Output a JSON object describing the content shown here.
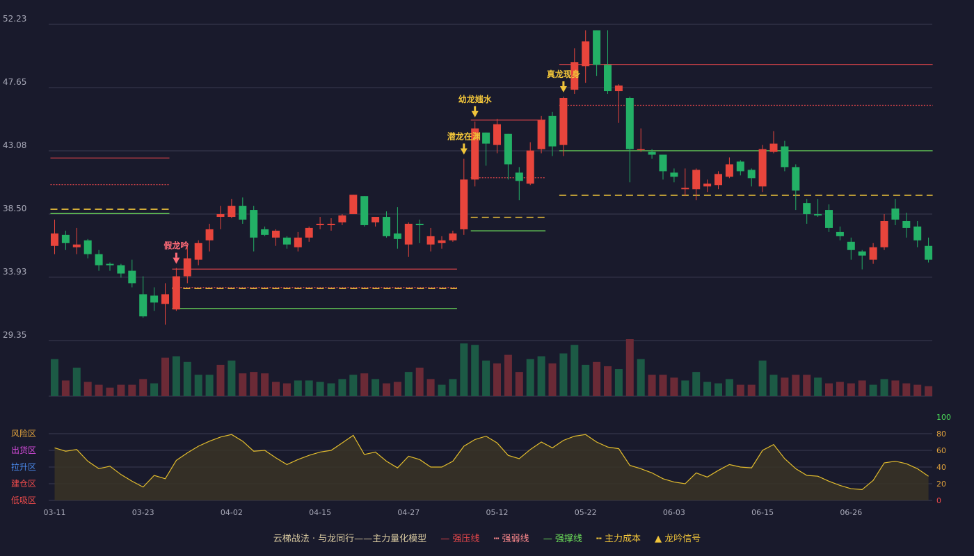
{
  "chart_data": {
    "type": "candlestick",
    "price_axis": {
      "ticks": [
        "52.23",
        "47.65",
        "43.08",
        "38.50",
        "33.93",
        "29.35"
      ],
      "ylim": [
        29.35,
        52.23
      ]
    },
    "x_ticks": [
      {
        "index": 0,
        "label": "03-11"
      },
      {
        "index": 8,
        "label": "03-23"
      },
      {
        "index": 16,
        "label": "04-02"
      },
      {
        "index": 24,
        "label": "04-15"
      },
      {
        "index": 32,
        "label": "04-27"
      },
      {
        "index": 40,
        "label": "05-12"
      },
      {
        "index": 48,
        "label": "05-22"
      },
      {
        "index": 56,
        "label": "06-03"
      },
      {
        "index": 64,
        "label": "06-15"
      },
      {
        "index": 72,
        "label": "06-26"
      }
    ],
    "candles": [
      [
        36.2,
        37.1,
        35.6,
        38.1
      ],
      [
        37.0,
        36.4,
        35.9,
        37.3
      ],
      [
        36.1,
        36.3,
        35.6,
        37.5
      ],
      [
        36.6,
        35.6,
        35.3,
        36.7
      ],
      [
        35.6,
        34.8,
        34.4,
        35.9
      ],
      [
        34.9,
        34.8,
        34.4,
        35.0
      ],
      [
        34.8,
        34.2,
        33.9,
        34.9
      ],
      [
        34.4,
        33.5,
        33.2,
        35.2
      ],
      [
        32.7,
        31.1,
        31.0,
        34.0
      ],
      [
        32.6,
        32.1,
        31.5,
        33.2
      ],
      [
        32.0,
        32.7,
        30.5,
        33.5
      ],
      [
        31.6,
        34.0,
        31.5,
        34.6
      ],
      [
        34.0,
        35.3,
        33.5,
        36.3
      ],
      [
        35.2,
        36.4,
        34.8,
        36.6
      ],
      [
        36.6,
        37.4,
        35.8,
        37.8
      ],
      [
        38.3,
        38.5,
        37.4,
        39.1
      ],
      [
        38.3,
        39.1,
        38.2,
        39.6
      ],
      [
        39.1,
        38.1,
        37.8,
        39.7
      ],
      [
        38.8,
        36.8,
        35.8,
        39.1
      ],
      [
        37.4,
        37.0,
        36.9,
        37.6
      ],
      [
        36.8,
        37.3,
        36.2,
        37.4
      ],
      [
        36.8,
        36.3,
        36.0,
        36.9
      ],
      [
        36.1,
        36.8,
        35.8,
        37.2
      ],
      [
        36.8,
        37.5,
        36.5,
        37.6
      ],
      [
        37.7,
        37.8,
        37.4,
        38.3
      ],
      [
        37.7,
        37.8,
        37.3,
        38.2
      ],
      [
        37.9,
        38.4,
        37.7,
        38.5
      ],
      [
        38.5,
        39.9,
        38.5,
        39.9
      ],
      [
        39.8,
        37.7,
        37.6,
        39.8
      ],
      [
        37.9,
        38.3,
        37.6,
        38.3
      ],
      [
        38.3,
        36.9,
        36.8,
        38.7
      ],
      [
        37.1,
        36.7,
        36.0,
        39.0
      ],
      [
        36.3,
        37.8,
        35.4,
        37.9
      ],
      [
        37.8,
        37.7,
        36.4,
        38.1
      ],
      [
        36.3,
        36.9,
        35.8,
        37.5
      ],
      [
        36.4,
        36.6,
        36.0,
        36.9
      ],
      [
        36.6,
        37.1,
        36.5,
        37.3
      ],
      [
        37.4,
        41.0,
        37.0,
        42.5
      ],
      [
        41.0,
        44.7,
        40.5,
        45.2
      ],
      [
        44.4,
        43.6,
        42.0,
        44.4
      ],
      [
        43.5,
        45.0,
        42.9,
        45.4
      ],
      [
        44.3,
        42.1,
        41.0,
        44.3
      ],
      [
        41.5,
        40.9,
        39.5,
        41.9
      ],
      [
        40.7,
        43.1,
        40.6,
        43.7
      ],
      [
        43.2,
        45.3,
        42.9,
        45.6
      ],
      [
        45.6,
        43.4,
        42.7,
        45.9
      ],
      [
        43.5,
        46.9,
        42.7,
        47.0
      ],
      [
        47.5,
        49.5,
        47.2,
        50.5
      ],
      [
        49.2,
        51.0,
        48.0,
        51.8
      ],
      [
        51.8,
        49.3,
        48.5,
        51.8
      ],
      [
        49.3,
        47.4,
        47.2,
        51.8
      ],
      [
        47.4,
        47.8,
        45.1,
        47.9
      ],
      [
        46.9,
        43.2,
        40.8,
        47.0
      ],
      [
        43.2,
        43.2,
        43.0,
        44.7
      ],
      [
        43.0,
        42.8,
        42.5,
        43.2
      ],
      [
        42.8,
        41.6,
        41.0,
        42.8
      ],
      [
        41.5,
        41.2,
        40.8,
        41.8
      ],
      [
        40.3,
        40.4,
        39.8,
        41.8
      ],
      [
        40.3,
        41.7,
        39.5,
        41.8
      ],
      [
        40.5,
        40.7,
        40.1,
        41.0
      ],
      [
        40.6,
        41.4,
        40.3,
        41.6
      ],
      [
        41.2,
        42.1,
        41.1,
        42.6
      ],
      [
        42.3,
        41.6,
        41.3,
        42.4
      ],
      [
        41.7,
        41.1,
        40.5,
        41.8
      ],
      [
        40.5,
        43.2,
        40.1,
        43.5
      ],
      [
        43.0,
        43.6,
        42.9,
        44.5
      ],
      [
        43.4,
        41.9,
        41.6,
        43.8
      ],
      [
        41.9,
        40.2,
        38.8,
        42.1
      ],
      [
        39.3,
        38.5,
        37.8,
        39.6
      ],
      [
        38.5,
        38.4,
        38.3,
        39.6
      ],
      [
        38.8,
        37.5,
        37.2,
        39.2
      ],
      [
        37.2,
        36.9,
        36.6,
        37.6
      ],
      [
        36.5,
        35.9,
        35.2,
        36.8
      ],
      [
        35.8,
        35.5,
        34.5,
        35.9
      ],
      [
        35.2,
        36.1,
        34.9,
        36.4
      ],
      [
        36.1,
        38.0,
        35.9,
        38.5
      ],
      [
        38.9,
        38.1,
        37.7,
        39.6
      ],
      [
        38.0,
        37.5,
        36.8,
        38.6
      ],
      [
        37.6,
        36.6,
        36.1,
        38.0
      ],
      [
        36.2,
        35.2,
        35.0,
        36.8
      ]
    ],
    "volume": [
      [
        26,
        "d"
      ],
      [
        11,
        "r"
      ],
      [
        20,
        "d"
      ],
      [
        10,
        "r"
      ],
      [
        8,
        "r"
      ],
      [
        6,
        "r"
      ],
      [
        8,
        "r"
      ],
      [
        8,
        "r"
      ],
      [
        12,
        "r"
      ],
      [
        9,
        "d"
      ],
      [
        27,
        "r"
      ],
      [
        28,
        "d"
      ],
      [
        24,
        "d"
      ],
      [
        15,
        "d"
      ],
      [
        15,
        "d"
      ],
      [
        22,
        "r"
      ],
      [
        25,
        "d"
      ],
      [
        16,
        "r"
      ],
      [
        17,
        "r"
      ],
      [
        16,
        "r"
      ],
      [
        10,
        "r"
      ],
      [
        9,
        "r"
      ],
      [
        11,
        "d"
      ],
      [
        11,
        "d"
      ],
      [
        10,
        "d"
      ],
      [
        9,
        "d"
      ],
      [
        12,
        "d"
      ],
      [
        15,
        "d"
      ],
      [
        16,
        "r"
      ],
      [
        12,
        "d"
      ],
      [
        9,
        "r"
      ],
      [
        10,
        "r"
      ],
      [
        17,
        "d"
      ],
      [
        20,
        "r"
      ],
      [
        12,
        "r"
      ],
      [
        8,
        "d"
      ],
      [
        12,
        "d"
      ],
      [
        37,
        "d"
      ],
      [
        36,
        "d"
      ],
      [
        25,
        "d"
      ],
      [
        23,
        "r"
      ],
      [
        29,
        "r"
      ],
      [
        17,
        "r"
      ],
      [
        26,
        "d"
      ],
      [
        28,
        "d"
      ],
      [
        23,
        "r"
      ],
      [
        30,
        "d"
      ],
      [
        36,
        "d"
      ],
      [
        22,
        "d"
      ],
      [
        24,
        "r"
      ],
      [
        21,
        "r"
      ],
      [
        19,
        "d"
      ],
      [
        40,
        "r"
      ],
      [
        26,
        "d"
      ],
      [
        15,
        "r"
      ],
      [
        15,
        "r"
      ],
      [
        13,
        "r"
      ],
      [
        11,
        "d"
      ],
      [
        17,
        "d"
      ],
      [
        10,
        "d"
      ],
      [
        9,
        "d"
      ],
      [
        12,
        "d"
      ],
      [
        8,
        "r"
      ],
      [
        8,
        "r"
      ],
      [
        25,
        "d"
      ],
      [
        15,
        "d"
      ],
      [
        13,
        "r"
      ],
      [
        15,
        "r"
      ],
      [
        15,
        "r"
      ],
      [
        13,
        "d"
      ],
      [
        9,
        "r"
      ],
      [
        10,
        "r"
      ],
      [
        9,
        "r"
      ],
      [
        11,
        "r"
      ],
      [
        8,
        "d"
      ],
      [
        12,
        "d"
      ],
      [
        11,
        "r"
      ],
      [
        9,
        "r"
      ],
      [
        8,
        "r"
      ],
      [
        7,
        "r"
      ]
    ],
    "oscillator": {
      "right_ticks": [
        "100",
        "80",
        "60",
        "40",
        "20",
        "0"
      ],
      "zones": [
        {
          "label": "风险区",
          "color": "#e0a23c"
        },
        {
          "label": "出货区",
          "color": "#d64bdc"
        },
        {
          "label": "拉升区",
          "color": "#4b8cf0"
        },
        {
          "label": "建仓区",
          "color": "#ee4b4b"
        },
        {
          "label": "低吸区",
          "color": "#ee4b4b"
        }
      ],
      "values": [
        63,
        59,
        61,
        47,
        38,
        41,
        31,
        23,
        16,
        30,
        26,
        48,
        57,
        65,
        71,
        76,
        79,
        71,
        59,
        60,
        51,
        43,
        49,
        54,
        58,
        60,
        69,
        78,
        55,
        58,
        47,
        39,
        53,
        49,
        40,
        40,
        47,
        65,
        73,
        77,
        69,
        54,
        50,
        61,
        70,
        63,
        72,
        77,
        79,
        70,
        64,
        62,
        42,
        38,
        33,
        26,
        22,
        20,
        33,
        28,
        36,
        43,
        40,
        39,
        60,
        67,
        50,
        38,
        30,
        29,
        23,
        18,
        14,
        13,
        24,
        45,
        47,
        44,
        38,
        29
      ]
    },
    "levels": [
      {
        "x1": 0,
        "x2": 10,
        "price": 42.56,
        "color": "#e8474b",
        "style": "solid"
      },
      {
        "x1": 0,
        "x2": 10,
        "price": 40.63,
        "color": "#e8474b",
        "style": "dotted"
      },
      {
        "x1": 0,
        "x2": 10,
        "price": 38.85,
        "color": "#f0c43a",
        "style": "dash"
      },
      {
        "x1": 0,
        "x2": 10,
        "price": 38.54,
        "color": "#6ee35b",
        "style": "solid"
      },
      {
        "x1": 11,
        "x2": 36,
        "price": 34.52,
        "color": "#e8474b",
        "style": "solid"
      },
      {
        "x1": 11,
        "x2": 36,
        "price": 33.18,
        "color": "#e8474b",
        "style": "dotted"
      },
      {
        "x1": 11,
        "x2": 36,
        "price": 33.12,
        "color": "#f0c43a",
        "style": "dash"
      },
      {
        "x1": 11,
        "x2": 36,
        "price": 31.67,
        "color": "#6ee35b",
        "style": "solid"
      },
      {
        "x1": 38,
        "x2": 44,
        "price": 45.3,
        "color": "#e8474b",
        "style": "solid"
      },
      {
        "x1": 38,
        "x2": 44,
        "price": 41.13,
        "color": "#e8474b",
        "style": "dotted"
      },
      {
        "x1": 38,
        "x2": 44,
        "price": 38.27,
        "color": "#f0c43a",
        "style": "dash"
      },
      {
        "x1": 38,
        "x2": 44,
        "price": 37.29,
        "color": "#6ee35b",
        "style": "solid"
      },
      {
        "x1": 46,
        "x2": 79,
        "price": 49.33,
        "color": "#e8474b",
        "style": "solid"
      },
      {
        "x1": 46,
        "x2": 79,
        "price": 46.37,
        "color": "#e8474b",
        "style": "dotted"
      },
      {
        "x1": 46,
        "x2": 79,
        "price": 43.08,
        "color": "#6ee35b",
        "style": "solid"
      },
      {
        "x1": 46,
        "x2": 79,
        "price": 39.86,
        "color": "#f0c43a",
        "style": "dash"
      }
    ],
    "signals": [
      {
        "index": 11,
        "label": "假龙吟",
        "color": "#ff6b78"
      },
      {
        "index": 37,
        "label": "潜龙在渊",
        "color": "#f0c43a"
      },
      {
        "index": 38,
        "label": "幼龙媸水",
        "color": "#f0c43a"
      },
      {
        "index": 46,
        "label": "真龙现身",
        "color": "#f0c43a"
      }
    ]
  },
  "legend": {
    "title": "云梯战法 · 与龙同行——主力量化模型",
    "strong_press": "强压线",
    "strong_weak": "强弱线",
    "strong_support": "强撑线",
    "main_cost": "主力成本",
    "signal": "龙吟信号"
  },
  "colors": {
    "up": "#e8453c",
    "down": "#23b066",
    "up_vol": "#6b2a36",
    "down_vol": "#1c5a45",
    "osc": "#e3bd2d",
    "grid": "#3b3c52",
    "text": "#a8a9b8"
  }
}
